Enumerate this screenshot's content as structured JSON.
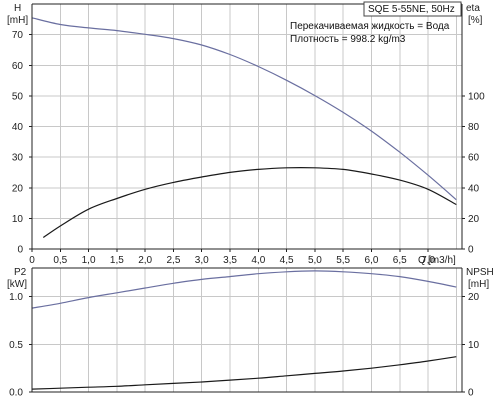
{
  "chart_data": [
    {
      "type": "line",
      "title": "SQE 5-55NE, 50Hz",
      "annotations": [
        "Перекачиваемая жидкость = Вода",
        "Плотность = 998.2 kg/m3"
      ],
      "xlabel": "Q",
      "xunit": "[m3/h]",
      "x_ticks": [
        "0",
        "0,5",
        "1,0",
        "1,5",
        "2,0",
        "2,5",
        "3,0",
        "3,5",
        "4,0",
        "4,5",
        "5,0",
        "5,5",
        "6,0",
        "6,5",
        "7,0"
      ],
      "xlim": [
        0,
        7.6
      ],
      "left_axis": {
        "label": "H",
        "unit": "[mH]",
        "ylim": [
          0,
          80
        ],
        "ticks": [
          "0",
          "10",
          "20",
          "30",
          "40",
          "50",
          "60",
          "70"
        ]
      },
      "right_axis": {
        "label": "eta",
        "unit": "[%]",
        "ylim": [
          0,
          160
        ],
        "ticks": [
          "0",
          "20",
          "40",
          "60",
          "80",
          "100"
        ]
      },
      "grid": true,
      "series": [
        {
          "axis": "left",
          "color": "#6a6fa0",
          "x": [
            0,
            0.5,
            1,
            1.5,
            2,
            2.5,
            3,
            3.5,
            4,
            4.5,
            5,
            5.5,
            6,
            6.5,
            7,
            7.5
          ],
          "y": [
            75.5,
            73.3,
            72.2,
            71.3,
            70.1,
            68.7,
            66.6,
            63.5,
            59.6,
            55.1,
            50.1,
            44.6,
            38.5,
            31.6,
            24.1,
            16.1
          ]
        },
        {
          "axis": "right",
          "color": "#1a1a1a",
          "x": [
            0.2,
            0.5,
            1,
            1.5,
            2,
            2.5,
            3,
            3.5,
            4,
            4.5,
            5,
            5.5,
            6,
            6.5,
            7,
            7.5
          ],
          "y": [
            7.5,
            15,
            26,
            33,
            39,
            43.5,
            47,
            50,
            52,
            53,
            53,
            52,
            49,
            45,
            39,
            29
          ]
        }
      ]
    },
    {
      "type": "line",
      "xlabel": "Q",
      "xlim": [
        0,
        7.6
      ],
      "left_axis": {
        "label": "P2",
        "unit": "[kW]",
        "ylim": [
          0,
          1.3
        ],
        "ticks": [
          "0.0",
          "0.5",
          "1.0"
        ]
      },
      "right_axis": {
        "label": "NPSH",
        "unit": "[mH]",
        "ylim": [
          0,
          26
        ],
        "ticks": [
          "0",
          "10",
          "20"
        ]
      },
      "grid": true,
      "series": [
        {
          "axis": "left",
          "color": "#6a6fa0",
          "x": [
            0,
            0.5,
            1,
            1.5,
            2,
            2.5,
            3,
            3.5,
            4,
            4.5,
            5,
            5.5,
            6,
            6.5,
            7,
            7.5
          ],
          "y": [
            0.88,
            0.93,
            0.99,
            1.04,
            1.09,
            1.14,
            1.18,
            1.21,
            1.24,
            1.26,
            1.27,
            1.26,
            1.24,
            1.21,
            1.16,
            1.1
          ]
        },
        {
          "axis": "right",
          "color": "#1a1a1a",
          "x": [
            0,
            0.5,
            1,
            1.5,
            2,
            2.5,
            3,
            3.5,
            4,
            4.5,
            5,
            5.5,
            6,
            6.5,
            7,
            7.5
          ],
          "y": [
            0.6,
            0.8,
            1,
            1.2,
            1.5,
            1.8,
            2.1,
            2.5,
            2.9,
            3.4,
            3.9,
            4.4,
            5,
            5.7,
            6.5,
            7.4
          ]
        }
      ]
    }
  ]
}
